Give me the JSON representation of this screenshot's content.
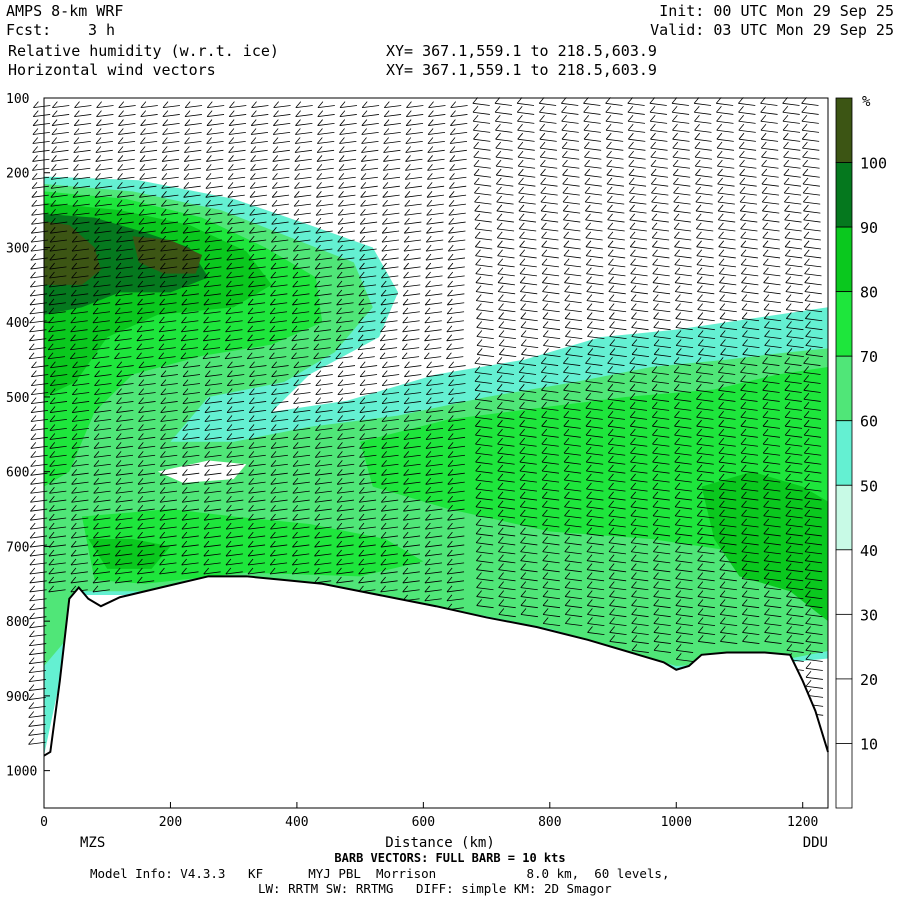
{
  "header": {
    "model": "AMPS 8-km WRF",
    "fcst_label": "Fcst:",
    "fcst_value": "3 h",
    "init": "Init: 00 UTC Mon 29 Sep 25",
    "valid": "Valid: 03 UTC Mon 29 Sep 25",
    "field1": "Relative humidity (w.r.t. ice)",
    "field2": "Horizontal wind vectors",
    "xy1": "XY= 367.1,559.1 to 218.5,603.9",
    "xy2": "XY= 367.1,559.1 to 218.5,603.9"
  },
  "chart_data": {
    "type": "heatmap",
    "xlabel": "Distance (km)",
    "ylabel": "",
    "xlim": [
      0,
      1240
    ],
    "ylim": [
      1050,
      100
    ],
    "x_ticks": [
      0,
      200,
      400,
      600,
      800,
      1000,
      1200
    ],
    "y_ticks": [
      100,
      200,
      300,
      400,
      500,
      600,
      700,
      800,
      900,
      1000
    ],
    "left_station": "MZS",
    "right_station": "DDU",
    "colorbar": {
      "unit": "%",
      "ticks": [
        10,
        20,
        30,
        40,
        50,
        60,
        70,
        80,
        90,
        100
      ],
      "colors": [
        "#ffffff",
        "#ffffff",
        "#ffffff",
        "#c8fae6",
        "#64f0d2",
        "#50e678",
        "#1ee63c",
        "#0ac81e",
        "#05781e",
        "#3c5514"
      ]
    },
    "terrain": [
      [
        0,
        980
      ],
      [
        10,
        975
      ],
      [
        25,
        880
      ],
      [
        40,
        770
      ],
      [
        55,
        755
      ],
      [
        70,
        770
      ],
      [
        90,
        780
      ],
      [
        120,
        768
      ],
      [
        160,
        760
      ],
      [
        200,
        752
      ],
      [
        260,
        740
      ],
      [
        320,
        740
      ],
      [
        380,
        745
      ],
      [
        440,
        750
      ],
      [
        500,
        760
      ],
      [
        560,
        770
      ],
      [
        620,
        780
      ],
      [
        700,
        795
      ],
      [
        780,
        808
      ],
      [
        860,
        825
      ],
      [
        940,
        845
      ],
      [
        980,
        855
      ],
      [
        1000,
        865
      ],
      [
        1020,
        860
      ],
      [
        1040,
        845
      ],
      [
        1080,
        842
      ],
      [
        1140,
        842
      ],
      [
        1180,
        845
      ],
      [
        1200,
        880
      ],
      [
        1220,
        920
      ],
      [
        1240,
        975
      ]
    ],
    "rh_regions": [
      {
        "rh": 45,
        "points": [
          [
            0,
            205
          ],
          [
            150,
            210
          ],
          [
            300,
            235
          ],
          [
            420,
            270
          ],
          [
            520,
            300
          ],
          [
            560,
            360
          ],
          [
            530,
            420
          ],
          [
            420,
            470
          ],
          [
            360,
            520
          ],
          [
            480,
            505
          ],
          [
            620,
            470
          ],
          [
            760,
            450
          ],
          [
            880,
            420
          ],
          [
            1000,
            410
          ],
          [
            1120,
            395
          ],
          [
            1200,
            385
          ],
          [
            1240,
            380
          ],
          [
            1240,
            850
          ],
          [
            1180,
            855
          ],
          [
            1000,
            870
          ],
          [
            800,
            815
          ],
          [
            560,
            775
          ],
          [
            300,
            745
          ],
          [
            160,
            765
          ],
          [
            60,
            765
          ],
          [
            20,
            900
          ],
          [
            0,
            980
          ]
        ]
      },
      {
        "rh": 58,
        "points": [
          [
            0,
            215
          ],
          [
            140,
            225
          ],
          [
            280,
            250
          ],
          [
            400,
            290
          ],
          [
            490,
            320
          ],
          [
            520,
            380
          ],
          [
            460,
            440
          ],
          [
            380,
            480
          ],
          [
            260,
            500
          ],
          [
            200,
            560
          ],
          [
            300,
            560
          ],
          [
            420,
            540
          ],
          [
            560,
            525
          ],
          [
            700,
            500
          ],
          [
            840,
            480
          ],
          [
            960,
            460
          ],
          [
            1080,
            450
          ],
          [
            1180,
            440
          ],
          [
            1240,
            435
          ],
          [
            1240,
            840
          ],
          [
            1180,
            850
          ],
          [
            1000,
            860
          ],
          [
            800,
            810
          ],
          [
            560,
            770
          ],
          [
            320,
            742
          ],
          [
            160,
            760
          ],
          [
            60,
            760
          ],
          [
            30,
            830
          ],
          [
            0,
            860
          ]
        ]
      },
      {
        "rh": 66,
        "points": [
          [
            0,
            225
          ],
          [
            130,
            235
          ],
          [
            250,
            260
          ],
          [
            350,
            300
          ],
          [
            430,
            340
          ],
          [
            440,
            400
          ],
          [
            360,
            430
          ],
          [
            250,
            445
          ],
          [
            140,
            470
          ],
          [
            80,
            520
          ],
          [
            40,
            600
          ],
          [
            0,
            620
          ]
        ]
      },
      {
        "rh": 66,
        "points": [
          [
            500,
            560
          ],
          [
            640,
            530
          ],
          [
            780,
            515
          ],
          [
            920,
            500
          ],
          [
            1060,
            490
          ],
          [
            1160,
            470
          ],
          [
            1240,
            460
          ],
          [
            1240,
            700
          ],
          [
            1120,
            710
          ],
          [
            960,
            690
          ],
          [
            800,
            680
          ],
          [
            640,
            650
          ],
          [
            520,
            620
          ]
        ]
      },
      {
        "rh": 66,
        "points": [
          [
            60,
            660
          ],
          [
            200,
            650
          ],
          [
            300,
            660
          ],
          [
            420,
            670
          ],
          [
            540,
            690
          ],
          [
            600,
            720
          ],
          [
            500,
            740
          ],
          [
            320,
            735
          ],
          [
            160,
            750
          ],
          [
            80,
            745
          ]
        ]
      },
      {
        "rh": 75,
        "points": [
          [
            0,
            240
          ],
          [
            120,
            250
          ],
          [
            230,
            270
          ],
          [
            320,
            305
          ],
          [
            360,
            350
          ],
          [
            300,
            380
          ],
          [
            180,
            390
          ],
          [
            100,
            420
          ],
          [
            50,
            480
          ],
          [
            0,
            500
          ]
        ]
      },
      {
        "rh": 75,
        "points": [
          [
            1040,
            620
          ],
          [
            1120,
            600
          ],
          [
            1200,
            620
          ],
          [
            1240,
            640
          ],
          [
            1240,
            800
          ],
          [
            1180,
            760
          ],
          [
            1100,
            740
          ],
          [
            1060,
            690
          ]
        ]
      },
      {
        "rh": 75,
        "points": [
          [
            70,
            690
          ],
          [
            140,
            690
          ],
          [
            200,
            700
          ],
          [
            170,
            730
          ],
          [
            100,
            730
          ]
        ]
      },
      {
        "rh": 82,
        "points": [
          [
            0,
            255
          ],
          [
            80,
            260
          ],
          [
            160,
            280
          ],
          [
            230,
            300
          ],
          [
            260,
            340
          ],
          [
            200,
            360
          ],
          [
            120,
            360
          ],
          [
            60,
            380
          ],
          [
            0,
            390
          ]
        ]
      },
      {
        "rh": 95,
        "points": [
          [
            0,
            265
          ],
          [
            40,
            270
          ],
          [
            80,
            300
          ],
          [
            90,
            330
          ],
          [
            60,
            350
          ],
          [
            0,
            350
          ]
        ]
      },
      {
        "rh": 95,
        "points": [
          [
            140,
            285
          ],
          [
            200,
            290
          ],
          [
            250,
            310
          ],
          [
            240,
            335
          ],
          [
            190,
            335
          ],
          [
            150,
            320
          ]
        ]
      },
      {
        "rh": 25,
        "points": [
          [
            180,
            600
          ],
          [
            260,
            585
          ],
          [
            320,
            590
          ],
          [
            300,
            610
          ],
          [
            220,
            615
          ]
        ]
      }
    ],
    "barb_columns_km": [
      10,
      40,
      75,
      110,
      145,
      180,
      215,
      250,
      285,
      320,
      355,
      390,
      425,
      460,
      495,
      530,
      565,
      600,
      635,
      670,
      705,
      740,
      775,
      810,
      845,
      880,
      915,
      950,
      985,
      1020,
      1055,
      1090,
      1125,
      1160,
      1195,
      1225
    ]
  },
  "footer": {
    "barb_note": "BARB VECTORS: FULL BARB = 10 kts",
    "model_info": "Model Info: V4.3.3   KF      MYJ PBL  Morrison            8.0 km,  60 levels,",
    "model_info2": "LW: RRTM SW: RRTMG   DIFF: simple KM: 2D Smagor"
  }
}
